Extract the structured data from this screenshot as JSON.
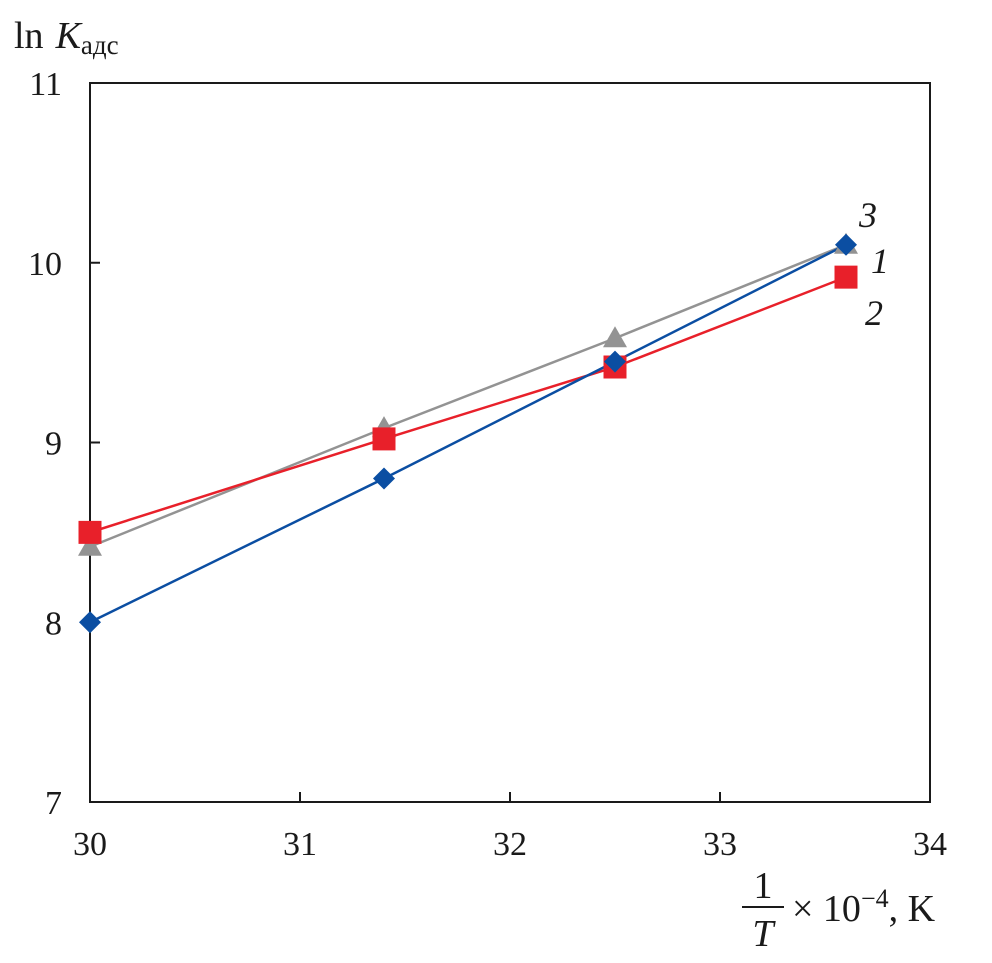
{
  "chart_data": {
    "type": "line",
    "title": "",
    "ylabel": {
      "main": "ln",
      "var": "K",
      "sub": "адс"
    },
    "xlabel": {
      "numerator": "1",
      "denominator": "T",
      "multiplier": "× 10",
      "exponent": "−4",
      "unit": ", K"
    },
    "xlim": [
      30,
      34
    ],
    "ylim": [
      7,
      11
    ],
    "xticks": [
      30,
      31,
      32,
      33,
      34
    ],
    "yticks": [
      7,
      8,
      9,
      10,
      11
    ],
    "xtick_labels": [
      "30",
      "31",
      "32",
      "33",
      "34"
    ],
    "ytick_labels": [
      "7",
      "8",
      "9",
      "10",
      "11"
    ],
    "grid": false,
    "series": [
      {
        "name": "1",
        "label": "1",
        "color": "#0b4ea2",
        "marker": "diamond",
        "x": [
          30,
          31.4,
          32.5,
          33.6
        ],
        "y": [
          8.0,
          8.8,
          9.45,
          10.1
        ]
      },
      {
        "name": "2",
        "label": "2",
        "color": "#e8202a",
        "marker": "square",
        "x": [
          30,
          31.4,
          32.5,
          33.6
        ],
        "y": [
          8.5,
          9.02,
          9.42,
          9.92
        ]
      },
      {
        "name": "3",
        "label": "3",
        "color": "#939393",
        "marker": "triangle",
        "x": [
          30,
          31.4,
          32.5,
          33.6
        ],
        "y": [
          8.42,
          9.08,
          9.58,
          10.1
        ]
      }
    ]
  }
}
